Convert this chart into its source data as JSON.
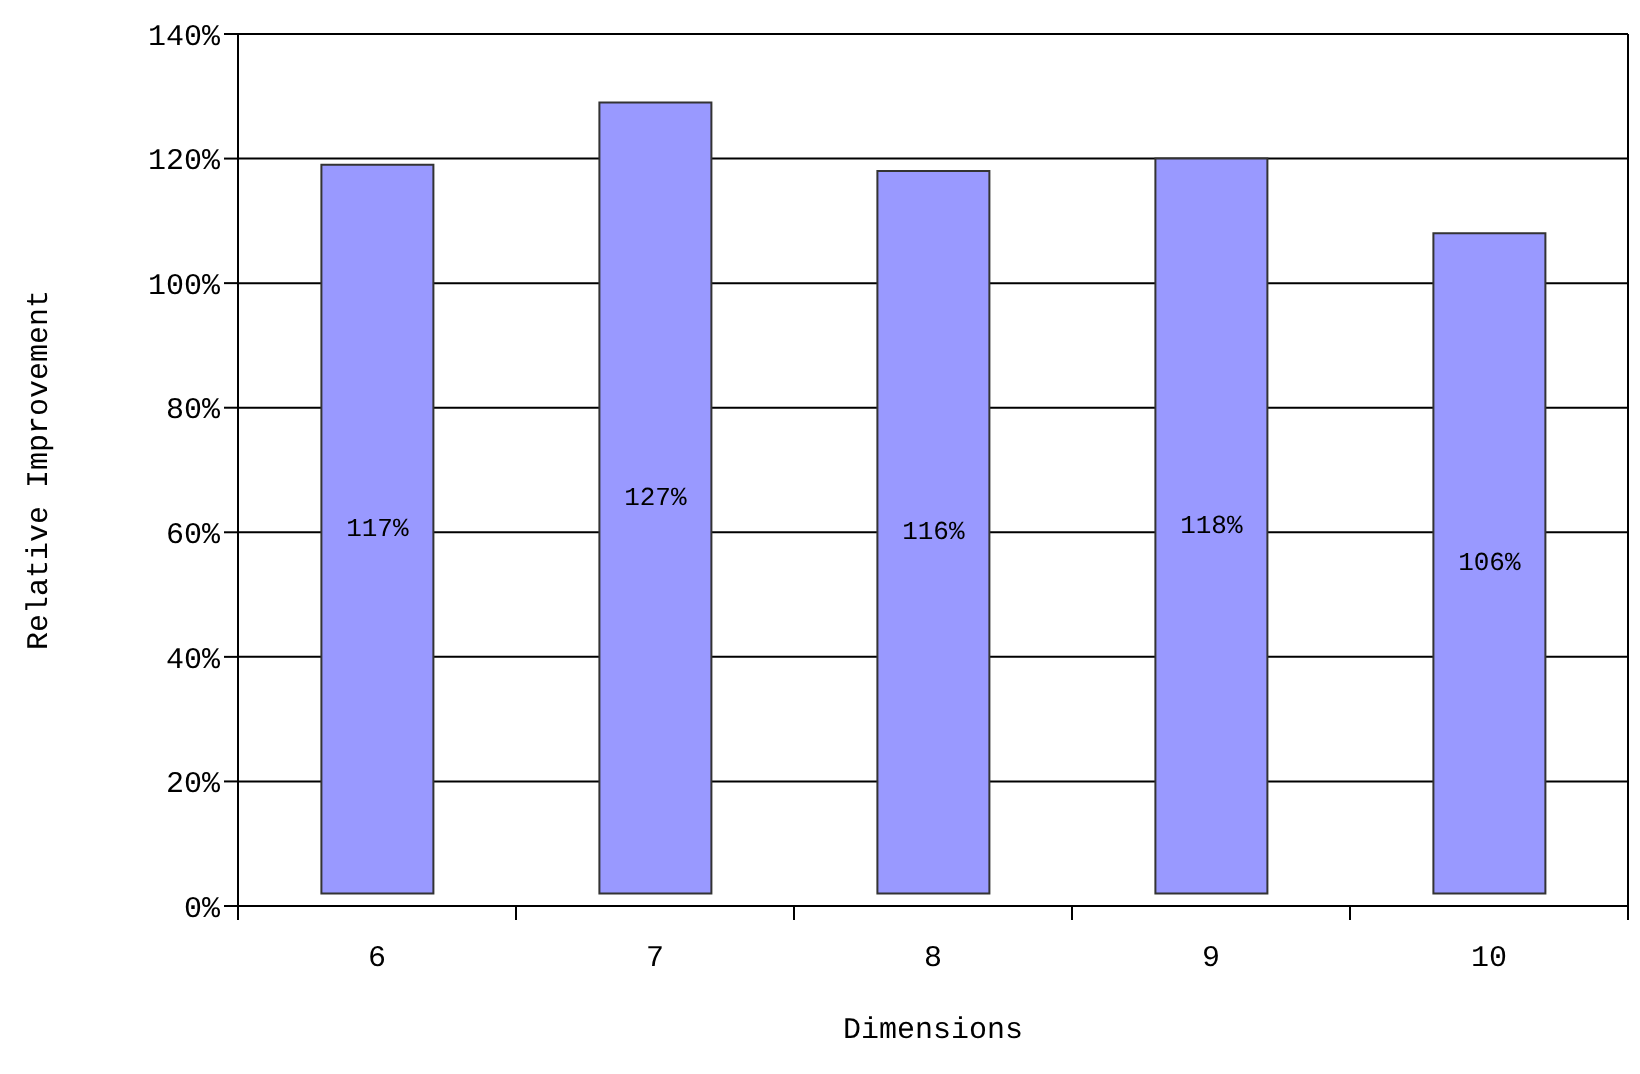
{
  "chart_data": {
    "type": "bar",
    "xlabel": "Dimensions",
    "ylabel": "Relative Improvement",
    "categories": [
      "6",
      "7",
      "8",
      "9",
      "10"
    ],
    "values": [
      117,
      127,
      116,
      118,
      106
    ],
    "base": [
      2,
      2,
      2,
      2,
      2
    ],
    "value_labels": [
      "117%",
      "127%",
      "116%",
      "118%",
      "106%"
    ],
    "color": "#9999ff",
    "ylim": [
      0,
      140
    ],
    "yticks": [
      {
        "value": 0,
        "label": "0%"
      },
      {
        "value": 20,
        "label": "20%"
      },
      {
        "value": 40,
        "label": "40%"
      },
      {
        "value": 60,
        "label": "60%"
      },
      {
        "value": 80,
        "label": "80%"
      },
      {
        "value": 100,
        "label": "100%"
      },
      {
        "value": 120,
        "label": "120%"
      },
      {
        "value": 140,
        "label": "140%"
      }
    ],
    "grid": "y"
  }
}
